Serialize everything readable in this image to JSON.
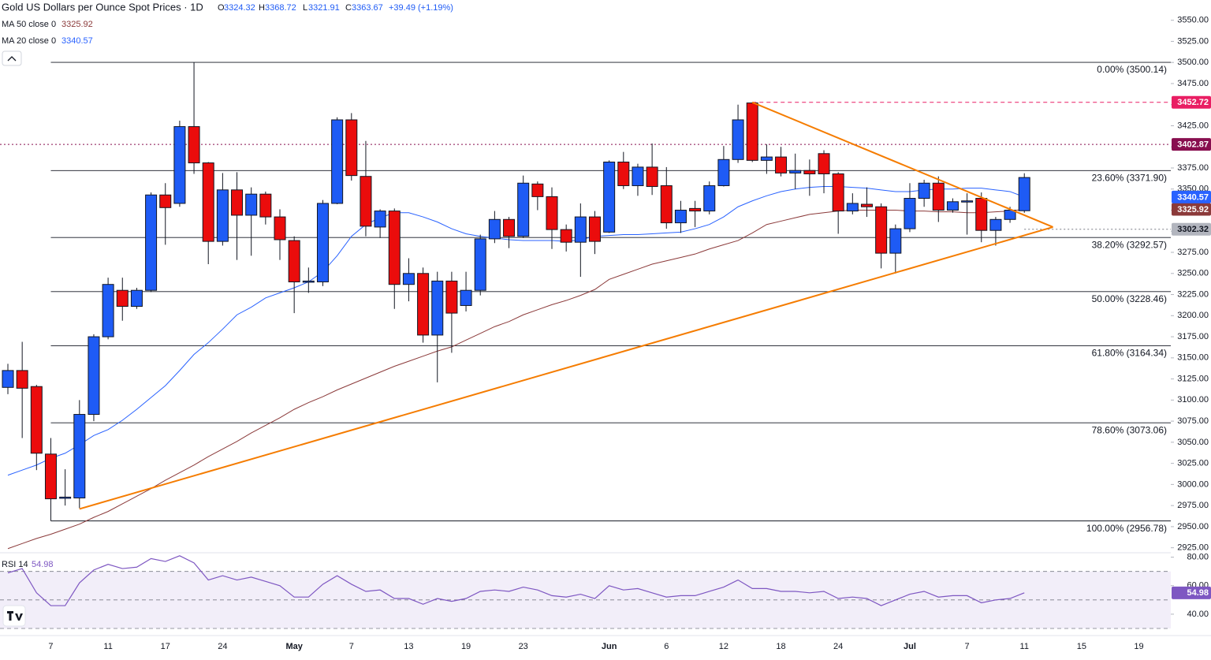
{
  "chart_data": [
    {
      "type": "candlestick",
      "title": "Gold US Dollars per Ounce Spot Prices · 1D",
      "ohlc_keys": [
        "O",
        "H",
        "L",
        "C"
      ],
      "change": "+39.49 (+1.19%)",
      "categories": [
        null,
        null,
        null,
        "7",
        null,
        null,
        null,
        "11",
        null,
        null,
        null,
        "17",
        null,
        null,
        null,
        "24",
        null,
        null,
        null,
        null,
        "May",
        null,
        null,
        null,
        "7",
        null,
        null,
        null,
        "13",
        null,
        null,
        null,
        "19",
        null,
        null,
        null,
        "23",
        null,
        null,
        null,
        null,
        null,
        "Jun",
        null,
        null,
        null,
        "6",
        null,
        null,
        null,
        "12",
        null,
        null,
        null,
        "18",
        null,
        null,
        null,
        "24",
        null,
        null,
        null,
        null,
        "Jul",
        null,
        null,
        null,
        "7",
        null,
        null,
        null,
        "11",
        null,
        null,
        null,
        "15",
        null,
        null,
        null,
        "19"
      ],
      "open": [
        3115,
        3135,
        3116,
        3036,
        2984,
        2984,
        3083,
        3175,
        3230,
        3211,
        3230,
        3343,
        3333,
        3424,
        3381,
        3288,
        3349,
        3319,
        3344,
        3317,
        3289,
        3240,
        3240,
        3333,
        3432,
        3365,
        3305,
        3324,
        3237,
        3250,
        3177,
        3241,
        3212,
        3230,
        3291,
        3314,
        3294,
        3356,
        3341,
        3302,
        3287,
        3317,
        3299,
        3382,
        3354,
        3376,
        3354,
        3310,
        3327,
        3324,
        3354,
        3385,
        3452,
        3384,
        3388,
        3369,
        3372,
        3392,
        3368,
        3324,
        3332,
        3329,
        3274,
        3303,
        3339,
        3357,
        3325,
        3335,
        3339,
        3301,
        3314,
        3324.32,
        null,
        null,
        null,
        null,
        null,
        null,
        null,
        null
      ],
      "high": [
        3143,
        3169,
        3118,
        3055,
        3018,
        3100,
        3178,
        3245,
        3245,
        3233,
        3346,
        3357,
        3431,
        3500.14,
        3382,
        3369,
        3370,
        3352,
        3347,
        3326,
        3294,
        3257,
        3337,
        3435,
        3440,
        3407,
        3326,
        3327,
        3268,
        3257,
        3252,
        3252,
        3252,
        3296,
        3324,
        3317,
        3366,
        3359,
        3352,
        3308,
        3333,
        3324,
        3384,
        3394,
        3380,
        3404,
        3376,
        3336,
        3336,
        3359,
        3401,
        3450,
        3452.72,
        3403,
        3400,
        3392,
        3385,
        3396,
        3370,
        3345,
        3352,
        3333,
        3308,
        3357,
        3361,
        3365,
        3339,
        3345,
        3346,
        3317,
        3329,
        3368.72,
        null,
        null,
        null,
        null,
        null,
        null,
        null,
        null
      ],
      "low": [
        3107,
        3055,
        3017,
        2956.78,
        2975,
        2972,
        3075,
        3172,
        3194,
        3208,
        3228,
        3284,
        3329,
        3368,
        3261,
        3283,
        3266,
        3271,
        3308,
        3266,
        3203,
        3227,
        3235,
        3332,
        3360,
        3294,
        3292,
        3208,
        3217,
        3168,
        3121,
        3156,
        3205,
        3224,
        3286,
        3280,
        3292,
        3325,
        3279,
        3276,
        3246,
        3273,
        3298,
        3350,
        3342,
        3343,
        3303,
        3298,
        3305,
        3320,
        3353,
        3381,
        3382,
        3368,
        3365,
        3350,
        3342,
        3345,
        3297,
        3320,
        3317,
        3256,
        3250,
        3299,
        3329,
        3311,
        3322,
        3296,
        3287,
        3283,
        3310,
        3321.91,
        null,
        null,
        null,
        null,
        null,
        null,
        null,
        null
      ],
      "close": [
        3135,
        3114,
        3037,
        2983,
        2985,
        3083,
        3175,
        3237,
        3211,
        3230,
        3343,
        3328,
        3424,
        3381,
        3288,
        3349,
        3319,
        3344,
        3317,
        3290,
        3240,
        3241,
        3333,
        3432,
        3366,
        3306,
        3324,
        3237,
        3250,
        3177,
        3241,
        3203,
        3230,
        3291,
        3314,
        3294,
        3357,
        3341,
        3302,
        3287,
        3317,
        3288,
        3382,
        3354,
        3376,
        3353,
        3310,
        3325,
        3324,
        3354,
        3385,
        3432,
        3384,
        3388,
        3369,
        3372,
        3368,
        3368,
        3324,
        3333,
        3329,
        3274,
        3303,
        3339,
        3357,
        3325,
        3335,
        3336,
        3301,
        3314,
        3325,
        3363.67,
        null,
        null,
        null,
        null,
        null,
        null,
        null,
        null
      ],
      "up_color": "#1e5bf5",
      "down_color": "#eb0c0c",
      "series": [
        {
          "name": "MA 50 close 0",
          "color": "#8b3a3a",
          "values": [
            2924,
            2930,
            2936,
            2941,
            2947,
            2953,
            2961,
            2968,
            2977,
            2986,
            2995,
            3005,
            3014,
            3023,
            3033,
            3042,
            3051,
            3061,
            3070,
            3079,
            3089,
            3097,
            3104,
            3112,
            3119,
            3126,
            3133,
            3140,
            3146,
            3152,
            3158,
            3163,
            3171,
            3179,
            3187,
            3193,
            3201,
            3207,
            3213,
            3218,
            3224,
            3231,
            3243,
            3249,
            3255,
            3261,
            3265,
            3269,
            3273,
            3279,
            3284,
            3289,
            3298,
            3308,
            3312,
            3316,
            3320,
            3322,
            3324,
            3325,
            3325,
            3325,
            3325,
            3324,
            3324,
            3323,
            3323,
            3322,
            3322,
            3323,
            3324,
            3325.92,
            null,
            null,
            null,
            null,
            null,
            null,
            null,
            null
          ]
        },
        {
          "name": "MA 20 close 0",
          "color": "#2962ff",
          "values": [
            3011,
            3017,
            3023,
            3031,
            3037,
            3047,
            3058,
            3065,
            3076,
            3089,
            3103,
            3117,
            3135,
            3154,
            3168,
            3184,
            3201,
            3210,
            3221,
            3227,
            3233,
            3240,
            3252,
            3271,
            3294,
            3308,
            3316,
            3322,
            3322,
            3317,
            3311,
            3303,
            3297,
            3294,
            3292,
            3290,
            3289,
            3289,
            3289,
            3288,
            3290,
            3294,
            3295,
            3296,
            3296,
            3297,
            3298,
            3299,
            3303,
            3308,
            3317,
            3329,
            3336,
            3342,
            3347,
            3350,
            3352,
            3353,
            3353,
            3352,
            3351,
            3349,
            3347,
            3347,
            3349,
            3350,
            3350,
            3351,
            3351,
            3349,
            3347,
            3340.57,
            null,
            null,
            null,
            null,
            null,
            null,
            null,
            null
          ]
        }
      ],
      "levels": [
        {
          "label": "0.00% (3500.14)",
          "value": 3500.14
        },
        {
          "label": "23.60% (3371.90)",
          "value": 3371.9
        },
        {
          "label": "38.20% (3292.57)",
          "value": 3292.57
        },
        {
          "label": "50.00% (3228.46)",
          "value": 3228.46
        },
        {
          "label": "61.80% (3164.34)",
          "value": 3164.34
        },
        {
          "label": "78.60% (3073.06)",
          "value": 3073.06
        },
        {
          "label": "100.00% (2956.78)",
          "value": 2956.78
        }
      ],
      "trendlines": [
        {
          "color": "#f57c00",
          "points": [
            {
              "x": 5,
              "value": 2971
            },
            {
              "x": 73,
              "value": 3305
            }
          ]
        },
        {
          "color": "#f57c00",
          "points": [
            {
              "x": 52,
              "value": 3452.72
            },
            {
              "x": 73,
              "value": 3305
            }
          ]
        }
      ],
      "price_markers": [
        {
          "value": 3452.72,
          "color": "#e91e63",
          "style": "dashed"
        },
        {
          "value": 3402.87,
          "color": "#880e4f",
          "style": "dotted"
        },
        {
          "value": 3302.32,
          "color": "#b2b5be",
          "style": "dotted"
        }
      ],
      "ylim": [
        2920,
        3574
      ],
      "yticks": [
        {
          "value": 2925,
          "label": "2925.00"
        },
        {
          "value": 2950,
          "label": "2950.00"
        },
        {
          "value": 2975,
          "label": "2975.00"
        },
        {
          "value": 3000,
          "label": "3000.00"
        },
        {
          "value": 3025,
          "label": "3025.00"
        },
        {
          "value": 3050,
          "label": "3050.00"
        },
        {
          "value": 3075,
          "label": "3075.00"
        },
        {
          "value": 3100,
          "label": "3100.00"
        },
        {
          "value": 3125,
          "label": "3125.00"
        },
        {
          "value": 3150,
          "label": "3150.00"
        },
        {
          "value": 3175,
          "label": "3175.00"
        },
        {
          "value": 3200,
          "label": "3200.00"
        },
        {
          "value": 3225,
          "label": "3225.00"
        },
        {
          "value": 3250,
          "label": "3250.00"
        },
        {
          "value": 3275,
          "label": "3275.00"
        },
        {
          "value": 3300,
          "label": "3300.00"
        },
        {
          "value": 3325,
          "label": "3325.00"
        },
        {
          "value": 3350,
          "label": "3350.00"
        },
        {
          "value": 3375,
          "label": "3375.00"
        },
        {
          "value": 3400,
          "label": "3400.00"
        },
        {
          "value": 3425,
          "label": "3425.00"
        },
        {
          "value": 3450,
          "label": "3450.00"
        },
        {
          "value": 3475,
          "label": "3475.00"
        },
        {
          "value": 3500,
          "label": "3500.00"
        },
        {
          "value": 3525,
          "label": "3525.00"
        },
        {
          "value": 3550,
          "label": "3550.00"
        }
      ]
    },
    {
      "type": "line",
      "name": "RSI 14",
      "color": "#7e57c2",
      "values": [
        69,
        72,
        55,
        46,
        46,
        62,
        71,
        75,
        72,
        73,
        79,
        77,
        81,
        76,
        64,
        67,
        64,
        66,
        63,
        60,
        52,
        52,
        61,
        67,
        61,
        56,
        57,
        51,
        51,
        47,
        51,
        49,
        51,
        56,
        57,
        56,
        59,
        57,
        53,
        52,
        54,
        51,
        60,
        57,
        58,
        55,
        52,
        53,
        53,
        56,
        59,
        64,
        58,
        58,
        56,
        56,
        55,
        56,
        51,
        52,
        51,
        46,
        50,
        54,
        56,
        52,
        53,
        53,
        48,
        50,
        51,
        54.98,
        null,
        null,
        null,
        null,
        null,
        null,
        null,
        null
      ],
      "bands": [
        70,
        50,
        30
      ],
      "ylim": [
        25,
        82
      ],
      "yticks": [
        {
          "value": 80,
          "label": "80.00"
        },
        {
          "value": 60,
          "label": "60.00"
        },
        {
          "value": 40,
          "label": "40.00"
        }
      ]
    }
  ]
}
